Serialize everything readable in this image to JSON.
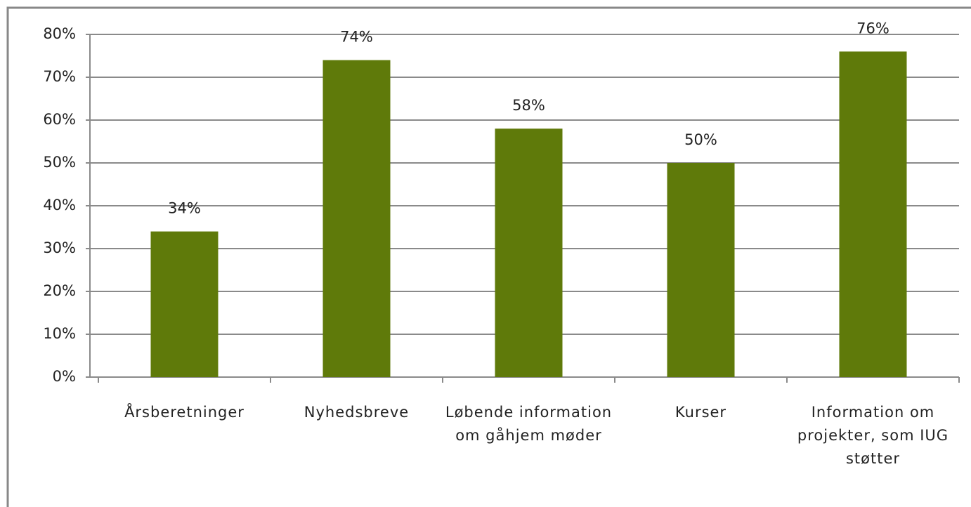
{
  "chart_data": {
    "type": "bar",
    "categories": [
      "Årsberetninger",
      "Nyhedsbreve",
      "Løbende information om gåhjem møder",
      "Kurser",
      "Information om projekter, som IUG støtter"
    ],
    "values": [
      34,
      74,
      58,
      50,
      76
    ],
    "value_labels": [
      "34%",
      "74%",
      "58%",
      "50%",
      "76%"
    ],
    "color": "#5f7a0a",
    "ylim": [
      0,
      80
    ],
    "yticks": [
      {
        "value": 0,
        "label": "0%"
      },
      {
        "value": 10,
        "label": "10%"
      },
      {
        "value": 20,
        "label": "20%"
      },
      {
        "value": 30,
        "label": "30%"
      },
      {
        "value": 40,
        "label": "40%"
      },
      {
        "value": 50,
        "label": "50%"
      },
      {
        "value": 60,
        "label": "60%"
      },
      {
        "value": 70,
        "label": "70%"
      },
      {
        "value": 80,
        "label": "80%"
      }
    ],
    "grid": true
  }
}
